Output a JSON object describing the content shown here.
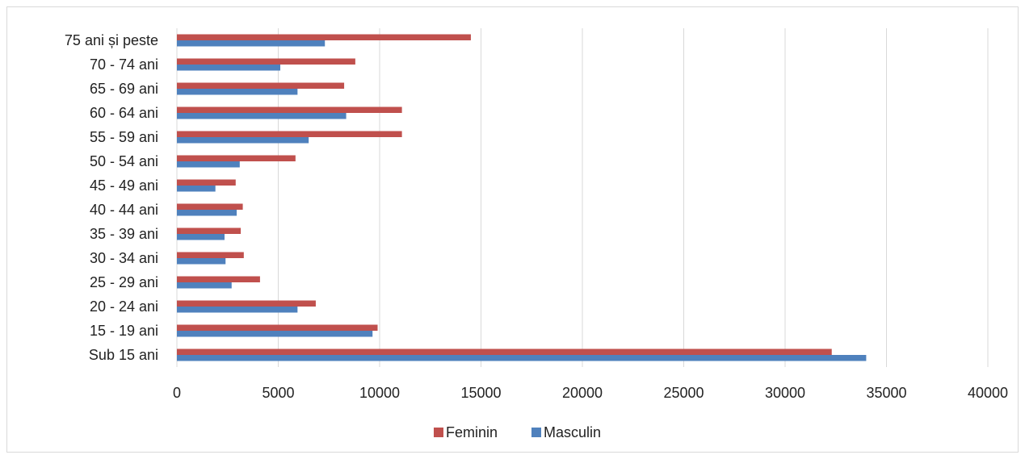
{
  "chart_data": {
    "type": "bar",
    "orientation": "horizontal",
    "categories": [
      "Sub 15 ani",
      "15 - 19 ani",
      "20 - 24 ani",
      "25 - 29 ani",
      "30 - 34 ani",
      "35 - 39 ani",
      "40 - 44 ani",
      "45 - 49 ani",
      "50 - 54 ani",
      "55 - 59 ani",
      "60 - 64 ani",
      "65 - 69 ani",
      "70 - 74 ani",
      "75 ani și peste"
    ],
    "series": [
      {
        "name": "Feminin",
        "color": "#C0504D",
        "values": [
          32300,
          9900,
          6850,
          4100,
          3300,
          3150,
          3250,
          2900,
          5850,
          11100,
          11100,
          8250,
          8800,
          14500
        ]
      },
      {
        "name": "Masculin",
        "color": "#4F81BD",
        "values": [
          34000,
          9650,
          5950,
          2700,
          2400,
          2350,
          2950,
          1900,
          3100,
          6500,
          8350,
          5950,
          5100,
          7300
        ]
      }
    ],
    "xlim": [
      0,
      40000
    ],
    "x_ticks": [
      0,
      5000,
      10000,
      15000,
      20000,
      25000,
      30000,
      35000,
      40000
    ],
    "x_tick_labels": [
      "0",
      "5000",
      "10000",
      "15000",
      "20000",
      "25000",
      "30000",
      "35000",
      "40000"
    ],
    "grid": "vertical",
    "legend_position": "bottom",
    "legend_order": [
      "Feminin",
      "Masculin"
    ],
    "gridline_color": "#d9d9d9"
  }
}
